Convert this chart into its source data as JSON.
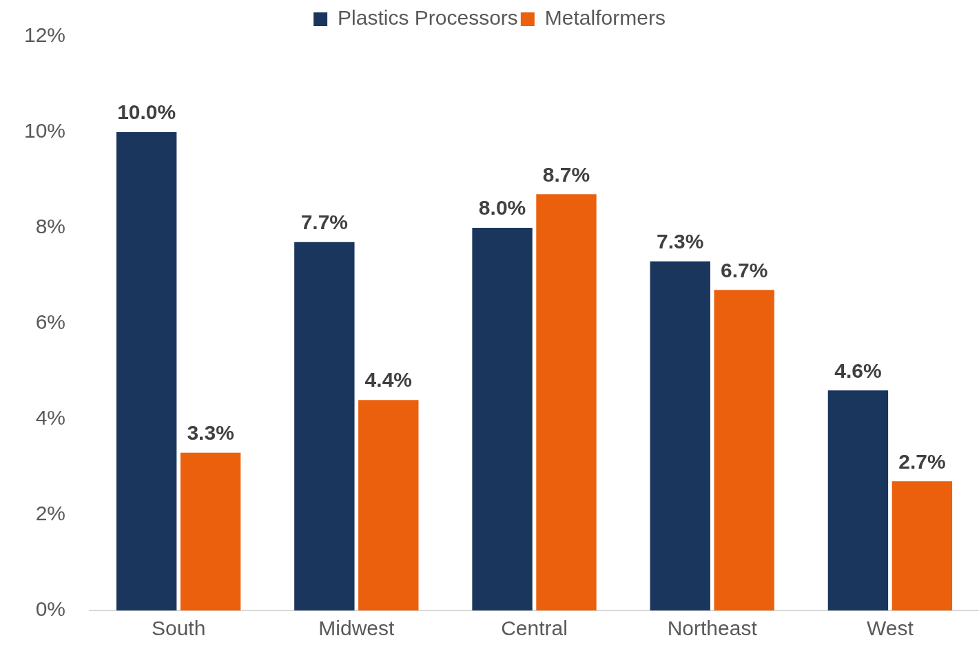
{
  "chart_data": {
    "type": "bar",
    "categories": [
      "South",
      "Midwest",
      "Central",
      "Northeast",
      "West"
    ],
    "series": [
      {
        "name": "Plastics Processors",
        "color": "#1b365d",
        "values": [
          10.0,
          7.7,
          8.0,
          7.3,
          4.6
        ],
        "value_labels": [
          "10.0%",
          "7.7%",
          "8.0%",
          "7.3%",
          "4.6%"
        ]
      },
      {
        "name": "Metalformers",
        "color": "#ea600c",
        "values": [
          3.3,
          4.4,
          8.7,
          6.7,
          2.7
        ],
        "value_labels": [
          "3.3%",
          "4.4%",
          "8.7%",
          "6.7%",
          "2.7%"
        ]
      }
    ],
    "ylim": [
      0,
      12
    ],
    "yticks": [
      {
        "value": 0,
        "label": "0%"
      },
      {
        "value": 2,
        "label": "2%"
      },
      {
        "value": 4,
        "label": "4%"
      },
      {
        "value": 6,
        "label": "6%"
      },
      {
        "value": 8,
        "label": "8%"
      },
      {
        "value": 10,
        "label": "10%"
      },
      {
        "value": 12,
        "label": "12%"
      }
    ],
    "grid": false,
    "legend": "top"
  }
}
